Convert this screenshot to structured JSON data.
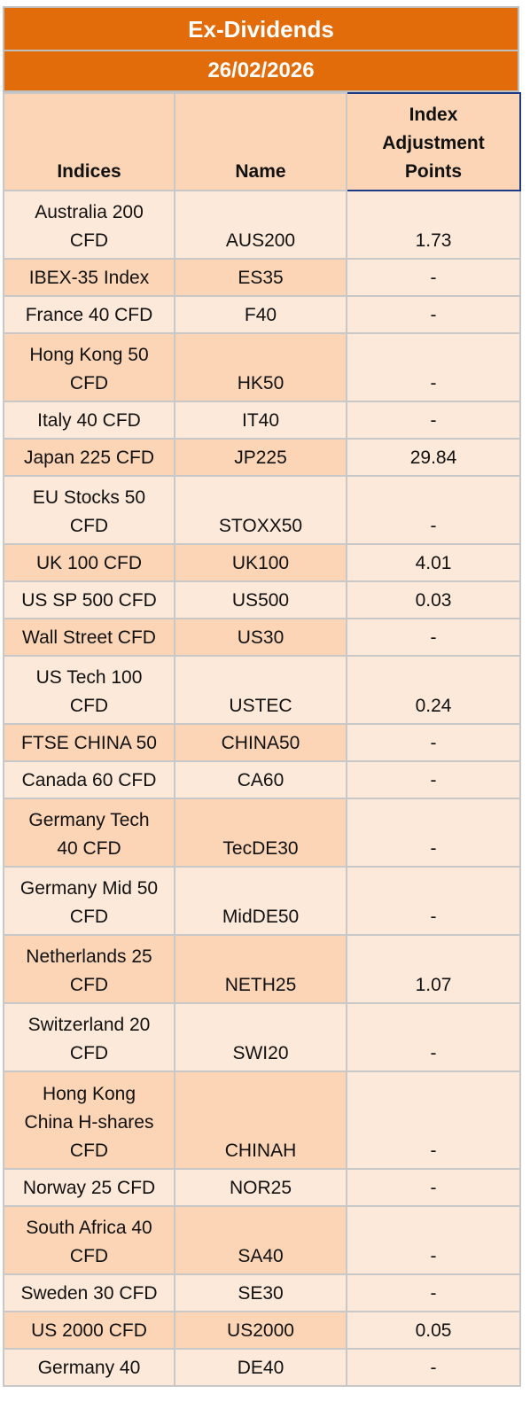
{
  "title": "Ex-Dividends",
  "date": "26/02/2026",
  "headers": {
    "indices": "Indices",
    "name": "Name",
    "adjustment": "Index Adjustment Points"
  },
  "rows": [
    {
      "index": "Australia 200 CFD",
      "name": "AUS200",
      "points": "1.73"
    },
    {
      "index": "IBEX-35 Index",
      "name": "ES35",
      "points": "-"
    },
    {
      "index": "France 40 CFD",
      "name": "F40",
      "points": "-"
    },
    {
      "index": "Hong Kong 50 CFD",
      "name": "HK50",
      "points": "-"
    },
    {
      "index": "Italy 40 CFD",
      "name": "IT40",
      "points": "-"
    },
    {
      "index": "Japan 225 CFD",
      "name": "JP225",
      "points": "29.84"
    },
    {
      "index": "EU Stocks 50 CFD",
      "name": "STOXX50",
      "points": "-"
    },
    {
      "index": "UK 100 CFD",
      "name": "UK100",
      "points": "4.01"
    },
    {
      "index": "US SP 500 CFD",
      "name": "US500",
      "points": "0.03"
    },
    {
      "index": "Wall Street CFD",
      "name": "US30",
      "points": "-"
    },
    {
      "index": "US Tech 100 CFD",
      "name": "USTEC",
      "points": "0.24"
    },
    {
      "index": "FTSE CHINA 50",
      "name": "CHINA50",
      "points": "-"
    },
    {
      "index": "Canada 60 CFD",
      "name": "CA60",
      "points": "-"
    },
    {
      "index": "Germany Tech 40 CFD",
      "name": "TecDE30",
      "points": "-"
    },
    {
      "index": "Germany Mid 50 CFD",
      "name": "MidDE50",
      "points": "-"
    },
    {
      "index": "Netherlands 25 CFD",
      "name": "NETH25",
      "points": "1.07"
    },
    {
      "index": "Switzerland 20 CFD",
      "name": "SWI20",
      "points": "-"
    },
    {
      "index": "Hong Kong China H-shares CFD",
      "name": "CHINAH",
      "points": "-"
    },
    {
      "index": "Norway 25 CFD",
      "name": "NOR25",
      "points": "-"
    },
    {
      "index": "South Africa 40 CFD",
      "name": "SA40",
      "points": "-"
    },
    {
      "index": "Sweden 30 CFD",
      "name": "SE30",
      "points": "-"
    },
    {
      "index": "US 2000 CFD",
      "name": "US2000",
      "points": "0.05"
    },
    {
      "index": "Germany 40",
      "name": "DE40",
      "points": "-"
    }
  ],
  "colors": {
    "banner": "#e36c0a",
    "header_bg": "#fbd5b5",
    "row_light": "#fde9d9",
    "row_dark": "#fbd5b5",
    "header_border_accent": "#1f3c88"
  }
}
